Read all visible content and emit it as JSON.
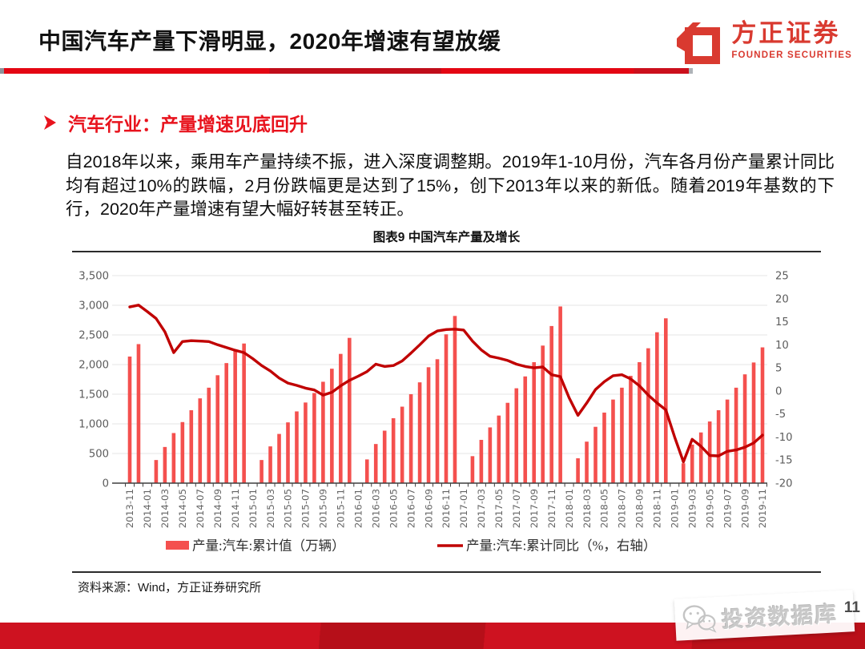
{
  "header": {
    "title": "中国汽车产量下滑明显，2020年增速有望放缓",
    "logo": {
      "name": "方正证券",
      "subtitle": "FOUNDER SECURITIES",
      "color": "#d93a30"
    }
  },
  "section": {
    "heading": "汽车行业：产量增速见底回升",
    "paragraph": "自2018年以来，乘用车产量持续不振，进入深度调整期。2019年1-10月份，汽车各月份产量累计同比均有超过10%的跌幅，2月份跌幅更是达到了15%，创下2013年以来的新低。随着2019年基数的下行，2020年产量增速有望大幅好转甚至转正。"
  },
  "figure": {
    "title": "图表9 中国汽车产量及增长",
    "source": "资料来源：Wind，方正证券研究所"
  },
  "footer": {
    "watermark": "投资数据库",
    "page_number": "11"
  },
  "chart_data": {
    "type": "bar+line",
    "title": "图表9 中国汽车产量及增长",
    "legend_position": "bottom",
    "grid": true,
    "months": [
      "2013-11",
      "2013-12",
      "2014-01",
      "2014-02",
      "2014-03",
      "2014-04",
      "2014-05",
      "2014-06",
      "2014-07",
      "2014-08",
      "2014-09",
      "2014-10",
      "2014-11",
      "2014-12",
      "2015-01",
      "2015-02",
      "2015-03",
      "2015-04",
      "2015-05",
      "2015-06",
      "2015-07",
      "2015-08",
      "2015-09",
      "2015-10",
      "2015-11",
      "2015-12",
      "2016-01",
      "2016-02",
      "2016-03",
      "2016-04",
      "2016-05",
      "2016-06",
      "2016-07",
      "2016-08",
      "2016-09",
      "2016-10",
      "2016-11",
      "2016-12",
      "2017-01",
      "2017-02",
      "2017-03",
      "2017-04",
      "2017-05",
      "2017-06",
      "2017-07",
      "2017-08",
      "2017-09",
      "2017-10",
      "2017-11",
      "2017-12",
      "2018-01",
      "2018-02",
      "2018-03",
      "2018-04",
      "2018-05",
      "2018-06",
      "2018-07",
      "2018-08",
      "2018-09",
      "2018-10",
      "2018-11",
      "2018-12",
      "2019-01",
      "2019-02",
      "2019-03",
      "2019-04",
      "2019-05",
      "2019-06",
      "2019-07",
      "2019-08",
      "2019-09",
      "2019-10",
      "2019-11"
    ],
    "bar_series": {
      "name": "产量:汽车:累计值（万辆）",
      "axis": "left",
      "color": "#f4504e",
      "values": [
        2135,
        2345,
        null,
        390,
        610,
        845,
        1030,
        1230,
        1430,
        1610,
        1820,
        2025,
        2250,
        2355,
        null,
        390,
        620,
        830,
        1025,
        1210,
        1360,
        1520,
        1710,
        1930,
        2180,
        2450,
        null,
        400,
        660,
        885,
        1095,
        1290,
        1500,
        1700,
        1955,
        2090,
        2510,
        2820,
        null,
        455,
        730,
        940,
        1140,
        1355,
        1600,
        1800,
        2040,
        2320,
        2650,
        2980,
        null,
        420,
        700,
        950,
        1190,
        1410,
        1610,
        1810,
        2040,
        2275,
        2545,
        2780,
        null,
        335,
        650,
        855,
        1040,
        1230,
        1410,
        1610,
        1835,
        2035,
        2290
      ]
    },
    "line_series": {
      "name": "产量:汽车:累计同比（%，右轴）",
      "axis": "right",
      "color": "#c00000",
      "values": [
        18.2,
        18.6,
        17.2,
        15.7,
        12.8,
        8.3,
        10.7,
        10.9,
        10.8,
        10.7,
        10.0,
        9.4,
        8.8,
        8.3,
        7.0,
        5.5,
        4.3,
        2.8,
        1.7,
        1.2,
        0.6,
        0.2,
        -0.9,
        -0.3,
        1.1,
        2.3,
        3.2,
        4.2,
        5.8,
        5.3,
        5.5,
        6.5,
        8.2,
        10.0,
        11.9,
        13.0,
        13.3,
        13.4,
        13.2,
        10.8,
        8.9,
        7.5,
        7.1,
        6.6,
        5.8,
        5.3,
        5.0,
        5.2,
        3.5,
        3.1,
        -1.5,
        -5.3,
        -2.6,
        0.3,
        2.0,
        3.3,
        3.5,
        2.6,
        1.1,
        -0.9,
        -2.6,
        -4.1,
        -10.0,
        -15.4,
        -10.5,
        -12.0,
        -14.0,
        -14.1,
        -13.1,
        -12.8,
        -12.2,
        -11.3,
        -9.6
      ]
    },
    "left_axis": {
      "min": 0,
      "max": 3500,
      "step": 500,
      "ticks": [
        "0",
        "500",
        "1,000",
        "1,500",
        "2,000",
        "2,500",
        "3,000",
        "3,500"
      ]
    },
    "right_axis": {
      "min": -20,
      "max": 25,
      "step": 5,
      "ticks": [
        "-20",
        "-15",
        "-10",
        "-5",
        "0",
        "5",
        "10",
        "15",
        "20",
        "25"
      ]
    },
    "x_label_every_n_months": 2
  }
}
